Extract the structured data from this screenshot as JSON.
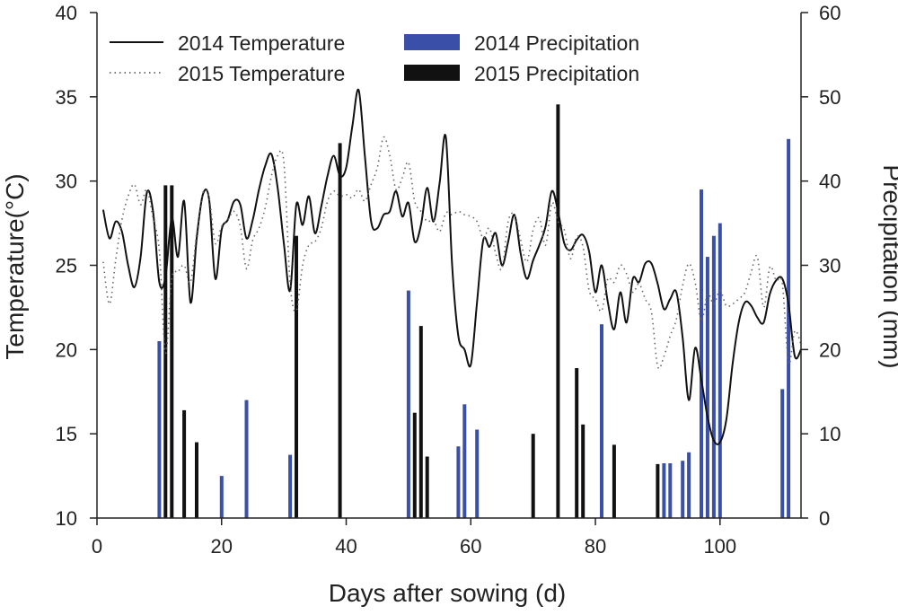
{
  "chart_data": {
    "type": "bar+line",
    "title": "",
    "xlabel": "Days after sowing (d)",
    "ylabel_left": "Temperature(°C)",
    "ylabel_right": "Precipitation (mm)",
    "xlim": [
      0,
      113
    ],
    "ylim_left": [
      10,
      40
    ],
    "ylim_right": [
      0,
      60
    ],
    "xticks": [
      0,
      20,
      40,
      60,
      80,
      100
    ],
    "yticks_left": [
      10,
      15,
      20,
      25,
      30,
      35,
      40
    ],
    "yticks_right": [
      0,
      10,
      20,
      30,
      40,
      50,
      60
    ],
    "grid": false,
    "legend_position": "top",
    "legend": [
      {
        "label": "2014 Temperature",
        "kind": "line-solid"
      },
      {
        "label": "2015 Temperature",
        "kind": "line-dotted"
      },
      {
        "label": "2014 Precipitation",
        "kind": "bar",
        "color": "#3a4fa8"
      },
      {
        "label": "2015 Precipitation",
        "kind": "bar",
        "color": "#111111"
      }
    ],
    "series": [
      {
        "name": "2014 Temperature",
        "type": "line",
        "axis": "left",
        "style": "solid",
        "color": "#111111",
        "x": [
          1,
          2,
          3,
          4,
          5,
          6,
          7,
          8,
          9,
          10,
          11,
          12,
          13,
          14,
          15,
          16,
          17,
          18,
          19,
          20,
          21,
          22,
          23,
          24,
          25,
          26,
          27,
          28,
          29,
          30,
          31,
          32,
          33,
          34,
          35,
          36,
          37,
          38,
          39,
          40,
          41,
          42,
          43,
          44,
          45,
          46,
          47,
          48,
          49,
          50,
          51,
          52,
          53,
          54,
          55,
          56,
          57,
          58,
          59,
          60,
          61,
          62,
          63,
          64,
          65,
          66,
          67,
          68,
          69,
          70,
          71,
          72,
          73,
          74,
          75,
          76,
          77,
          78,
          79,
          80,
          81,
          82,
          83,
          84,
          85,
          86,
          87,
          88,
          89,
          90,
          91,
          92,
          93,
          94,
          95,
          96,
          97,
          98,
          99,
          100,
          101,
          102,
          103,
          104,
          105,
          106,
          107,
          108,
          109,
          110,
          111,
          112,
          113
        ],
        "values": [
          28.3,
          26.6,
          27.6,
          27.0,
          25.0,
          23.7,
          25.5,
          29.3,
          28.2,
          24.0,
          24.3,
          27.8,
          25.5,
          28.8,
          22.8,
          26.6,
          29.2,
          28.9,
          24.2,
          27.1,
          27.7,
          28.8,
          28.6,
          26.6,
          27.7,
          29.5,
          30.9,
          31.6,
          29.6,
          26.3,
          23.5,
          28.6,
          27.4,
          29.1,
          26.9,
          28.5,
          30.3,
          31.5,
          30.3,
          30.8,
          33.3,
          35.4,
          31.5,
          27.6,
          27.2,
          28.0,
          28.2,
          29.4,
          27.9,
          28.7,
          26.4,
          27.4,
          29.6,
          27.6,
          29.9,
          32.6,
          25.0,
          20.8,
          20.0,
          19.1,
          22.8,
          26.5,
          26.1,
          26.9,
          25.0,
          26.4,
          28.0,
          25.7,
          24.2,
          25.3,
          26.2,
          27.3,
          29.4,
          28.2,
          26.3,
          25.9,
          26.5,
          26.8,
          25.8,
          23.4,
          25.0,
          22.8,
          21.2,
          23.4,
          21.6,
          24.2,
          24.0,
          25.1,
          25.1,
          23.9,
          22.4,
          23.0,
          23.4,
          20.7,
          17.0,
          20.1,
          18.2,
          16.0,
          14.6,
          14.5,
          15.8,
          19.1,
          21.6,
          22.8,
          22.6,
          21.9,
          21.6,
          23.3,
          24.1,
          24.2,
          22.7,
          19.6,
          20.0
        ]
      },
      {
        "name": "2015 Temperature",
        "type": "line",
        "axis": "left",
        "style": "dotted",
        "color": "#666666",
        "x": [
          1,
          2,
          3,
          4,
          5,
          6,
          7,
          8,
          9,
          10,
          11,
          12,
          13,
          14,
          15,
          16,
          17,
          18,
          19,
          20,
          21,
          22,
          23,
          24,
          25,
          26,
          27,
          28,
          29,
          30,
          31,
          32,
          33,
          34,
          35,
          36,
          37,
          38,
          39,
          40,
          41,
          42,
          43,
          44,
          45,
          46,
          47,
          48,
          49,
          50,
          51,
          52,
          53,
          54,
          55,
          56,
          57,
          58,
          59,
          60,
          61,
          62,
          63,
          64,
          65,
          66,
          67,
          68,
          69,
          70,
          71,
          72,
          73,
          74,
          75,
          76,
          77,
          78,
          79,
          80,
          81,
          82,
          83,
          84,
          85,
          86,
          87,
          88,
          89,
          90,
          91,
          92,
          93,
          94,
          95,
          96,
          97,
          98,
          99,
          100,
          101,
          102,
          103,
          104,
          105,
          106,
          107,
          108,
          109,
          110,
          111,
          112,
          113
        ],
        "values": [
          25.2,
          22.7,
          25.3,
          27.7,
          29.1,
          29.8,
          28.6,
          29.5,
          27.8,
          25.9,
          19.8,
          24.2,
          24.6,
          25.0,
          24.0,
          26.9,
          29.3,
          29.0,
          26.3,
          27.3,
          27.7,
          28.2,
          27.3,
          24.8,
          26.5,
          27.2,
          28.4,
          30.3,
          31.5,
          31.1,
          23.9,
          22.3,
          25.0,
          26.2,
          26.4,
          27.2,
          28.8,
          29.4,
          29.1,
          29.2,
          29.0,
          29.5,
          28.8,
          29.8,
          30.8,
          32.6,
          31.5,
          29.5,
          30.2,
          31.1,
          28.8,
          28.2,
          27.6,
          27.7,
          27.0,
          28.1,
          28.0,
          28.2,
          28.0,
          27.9,
          27.6,
          26.6,
          27.2,
          25.7,
          24.8,
          27.6,
          28.0,
          26.5,
          25.2,
          27.1,
          27.8,
          26.2,
          28.7,
          27.6,
          27.1,
          25.4,
          26.7,
          26.1,
          23.5,
          23.0,
          22.3,
          24.2,
          24.0,
          25.0,
          24.5,
          23.4,
          23.9,
          23.0,
          22.2,
          19.0,
          19.6,
          20.8,
          21.8,
          23.8,
          25.1,
          24.0,
          21.7,
          23.3,
          22.7,
          23.5,
          22.6,
          22.7,
          23.0,
          23.4,
          24.6,
          25.5,
          22.5,
          24.9,
          24.1,
          23.9,
          19.2,
          21.1,
          20.3
        ]
      },
      {
        "name": "2014 Precipitation",
        "type": "bar",
        "axis": "right",
        "color": "#3a4fa8",
        "x": [
          10,
          20,
          24,
          31,
          50,
          58,
          59,
          61,
          81,
          91,
          92,
          94,
          95,
          97,
          98,
          99,
          100,
          110,
          111
        ],
        "values": [
          21,
          5,
          14,
          7.5,
          27,
          8.5,
          13.5,
          10.5,
          23,
          6.5,
          6.5,
          6.8,
          7.8,
          39,
          31,
          33.5,
          35,
          15.3,
          45
        ]
      },
      {
        "name": "2015 Precipitation",
        "type": "bar",
        "axis": "right",
        "color": "#111111",
        "x": [
          11,
          12,
          14,
          16,
          32,
          39,
          51,
          52,
          53,
          70,
          74,
          77,
          78,
          83,
          90
        ],
        "values": [
          39.5,
          39.5,
          12.8,
          9,
          33.5,
          44.5,
          12.5,
          22.8,
          7.3,
          10,
          49.1,
          17.8,
          11.1,
          8.7,
          6.4
        ]
      }
    ]
  }
}
